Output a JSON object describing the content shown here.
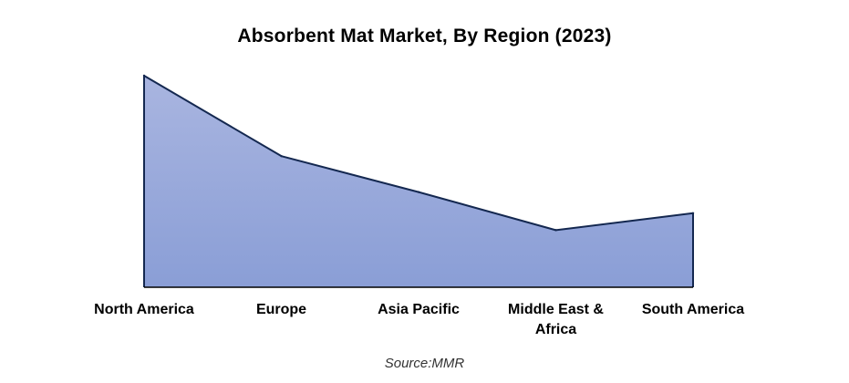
{
  "chart_data": {
    "type": "area",
    "title": "Absorbent  Mat Market, By Region  (2023)",
    "categories": [
      "North America",
      "Europe",
      "Asia Pacific",
      "Middle East & Africa",
      "South America"
    ],
    "category_lines": [
      [
        "North America"
      ],
      [
        "Europe"
      ],
      [
        "Asia Pacific"
      ],
      [
        "Middle East &",
        "Africa"
      ],
      [
        "South America"
      ]
    ],
    "values": [
      100,
      62,
      45,
      27,
      35
    ],
    "ylim": [
      0,
      100
    ],
    "xlabel": "",
    "ylabel": "",
    "grid": false,
    "legend": "none",
    "fill_top": "#a9b5e0",
    "fill_bottom": "#8a9ed6",
    "stroke": "#142850",
    "axis_color": "#000000"
  },
  "source": "Source:MMR"
}
